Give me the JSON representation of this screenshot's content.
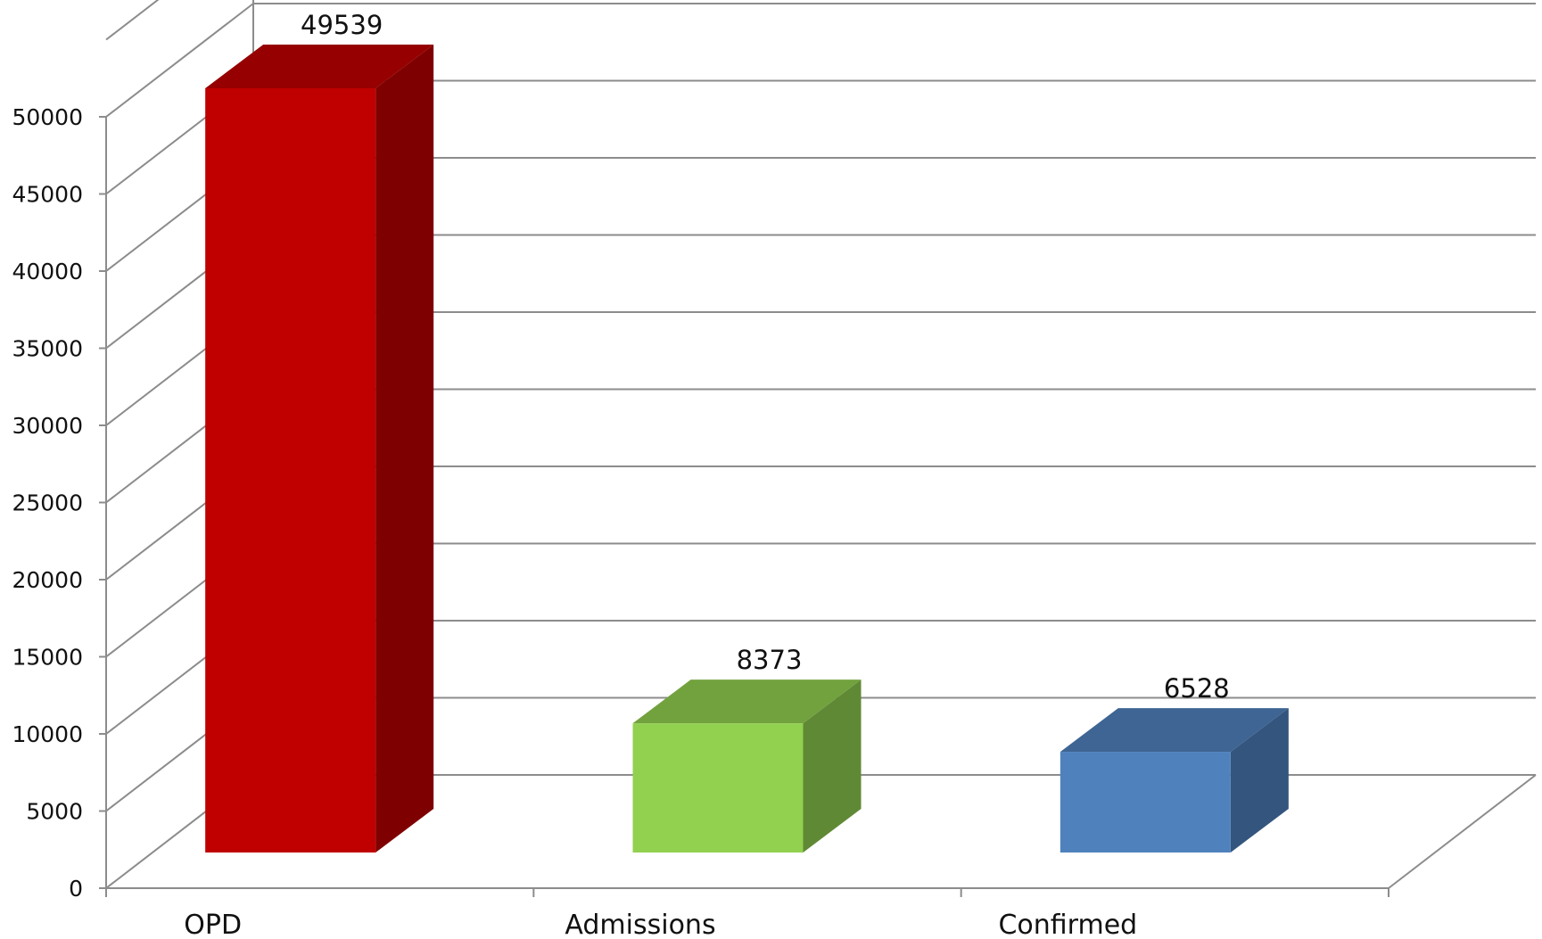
{
  "chart_data": {
    "type": "bar",
    "three_d": true,
    "categories": [
      "OPD",
      "Admissions",
      "Confirmed"
    ],
    "values": [
      49539,
      8373,
      6528
    ],
    "data_labels": [
      "49539",
      "8373",
      "6528"
    ],
    "colors": [
      "#c00000",
      "#92d050",
      "#4f81bd"
    ],
    "ylim": [
      0,
      50000
    ],
    "yticks": [
      "0",
      "5000",
      "10000",
      "15000",
      "20000",
      "25000",
      "30000",
      "35000",
      "40000",
      "45000",
      "50000"
    ],
    "title": "",
    "xlabel": "",
    "ylabel": "",
    "grid": true,
    "legend": "none"
  }
}
